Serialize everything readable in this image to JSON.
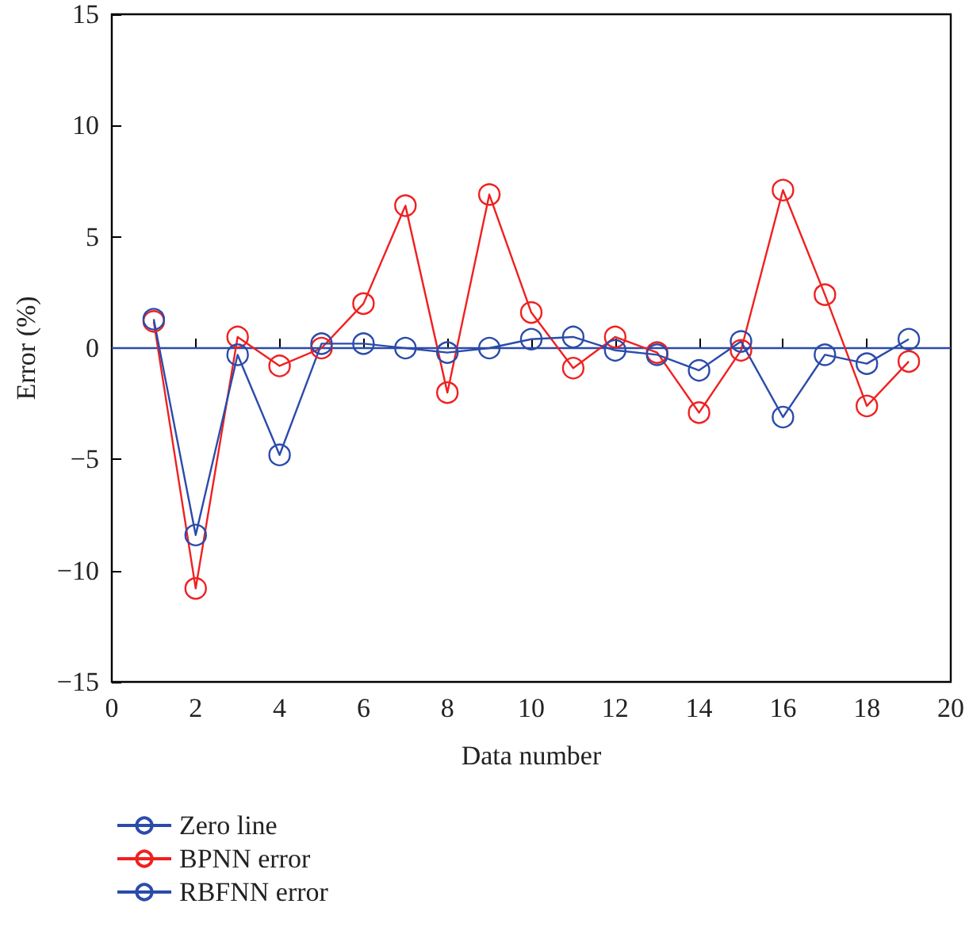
{
  "chart_data": {
    "type": "line",
    "xlabel": "Data number",
    "ylabel": "Error (%)",
    "xlim": [
      0,
      20
    ],
    "xticks": [
      0,
      2,
      4,
      6,
      8,
      10,
      12,
      14,
      16,
      18,
      20
    ],
    "ylim": [
      -15,
      15
    ],
    "yticks": [
      -15,
      -10,
      -5,
      0,
      5,
      10,
      15
    ],
    "grid": false,
    "legend": "bottom left",
    "series": [
      {
        "name": "Zero line",
        "color": "#2b4bab",
        "marker": "none",
        "x": [
          0,
          20
        ],
        "values": [
          0,
          0
        ]
      },
      {
        "name": "BPNN error",
        "color": "#f02020",
        "marker": "circle",
        "x": [
          1,
          2,
          3,
          4,
          5,
          6,
          7,
          8,
          9,
          10,
          11,
          12,
          13,
          14,
          15,
          16,
          17,
          18,
          19
        ],
        "values": [
          1.2,
          -10.8,
          0.5,
          -0.8,
          0.0,
          2.0,
          6.4,
          -2.0,
          6.9,
          1.6,
          -0.9,
          0.5,
          -0.2,
          -2.9,
          -0.1,
          7.1,
          2.4,
          -2.6,
          -0.6
        ]
      },
      {
        "name": "RBFNN error",
        "color": "#2b4bab",
        "marker": "circle",
        "x": [
          1,
          2,
          3,
          4,
          5,
          6,
          7,
          8,
          9,
          10,
          11,
          12,
          13,
          14,
          15,
          16,
          17,
          18,
          19
        ],
        "values": [
          1.3,
          -8.4,
          -0.3,
          -4.8,
          0.2,
          0.2,
          0.0,
          -0.2,
          0.0,
          0.4,
          0.5,
          -0.1,
          -0.3,
          -1.0,
          0.3,
          -3.1,
          -0.3,
          -0.7,
          0.4
        ]
      }
    ]
  }
}
